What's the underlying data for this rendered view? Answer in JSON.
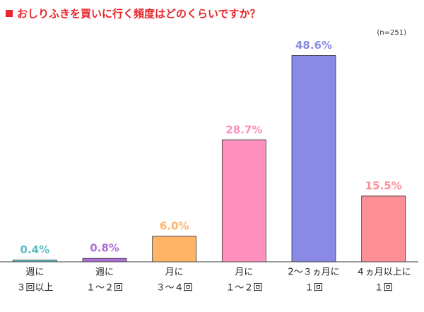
{
  "chart_data": {
    "type": "bar",
    "title": "おしりふきを買いに行く頻度はどのくらいですか？",
    "note": "(n=251)",
    "categories": [
      [
        "週に",
        "３回以上"
      ],
      [
        "週に",
        "１〜２回"
      ],
      [
        "月に",
        "３〜４回"
      ],
      [
        "月に",
        "１〜２回"
      ],
      [
        "2〜３ヵ月に",
        "１回"
      ],
      [
        "４ヵ月以上に",
        "１回"
      ]
    ],
    "values": [
      0.4,
      0.8,
      6.0,
      28.7,
      48.6,
      15.5
    ],
    "value_labels": [
      "0.4%",
      "0.8%",
      "6.0%",
      "28.7%",
      "48.6%",
      "15.5%"
    ],
    "colors": [
      "#5cbfc2",
      "#b06fd6",
      "#ffb466",
      "#ff91bf",
      "#8a8ae6",
      "#ff8f97"
    ],
    "ylim": [
      0,
      50
    ]
  }
}
